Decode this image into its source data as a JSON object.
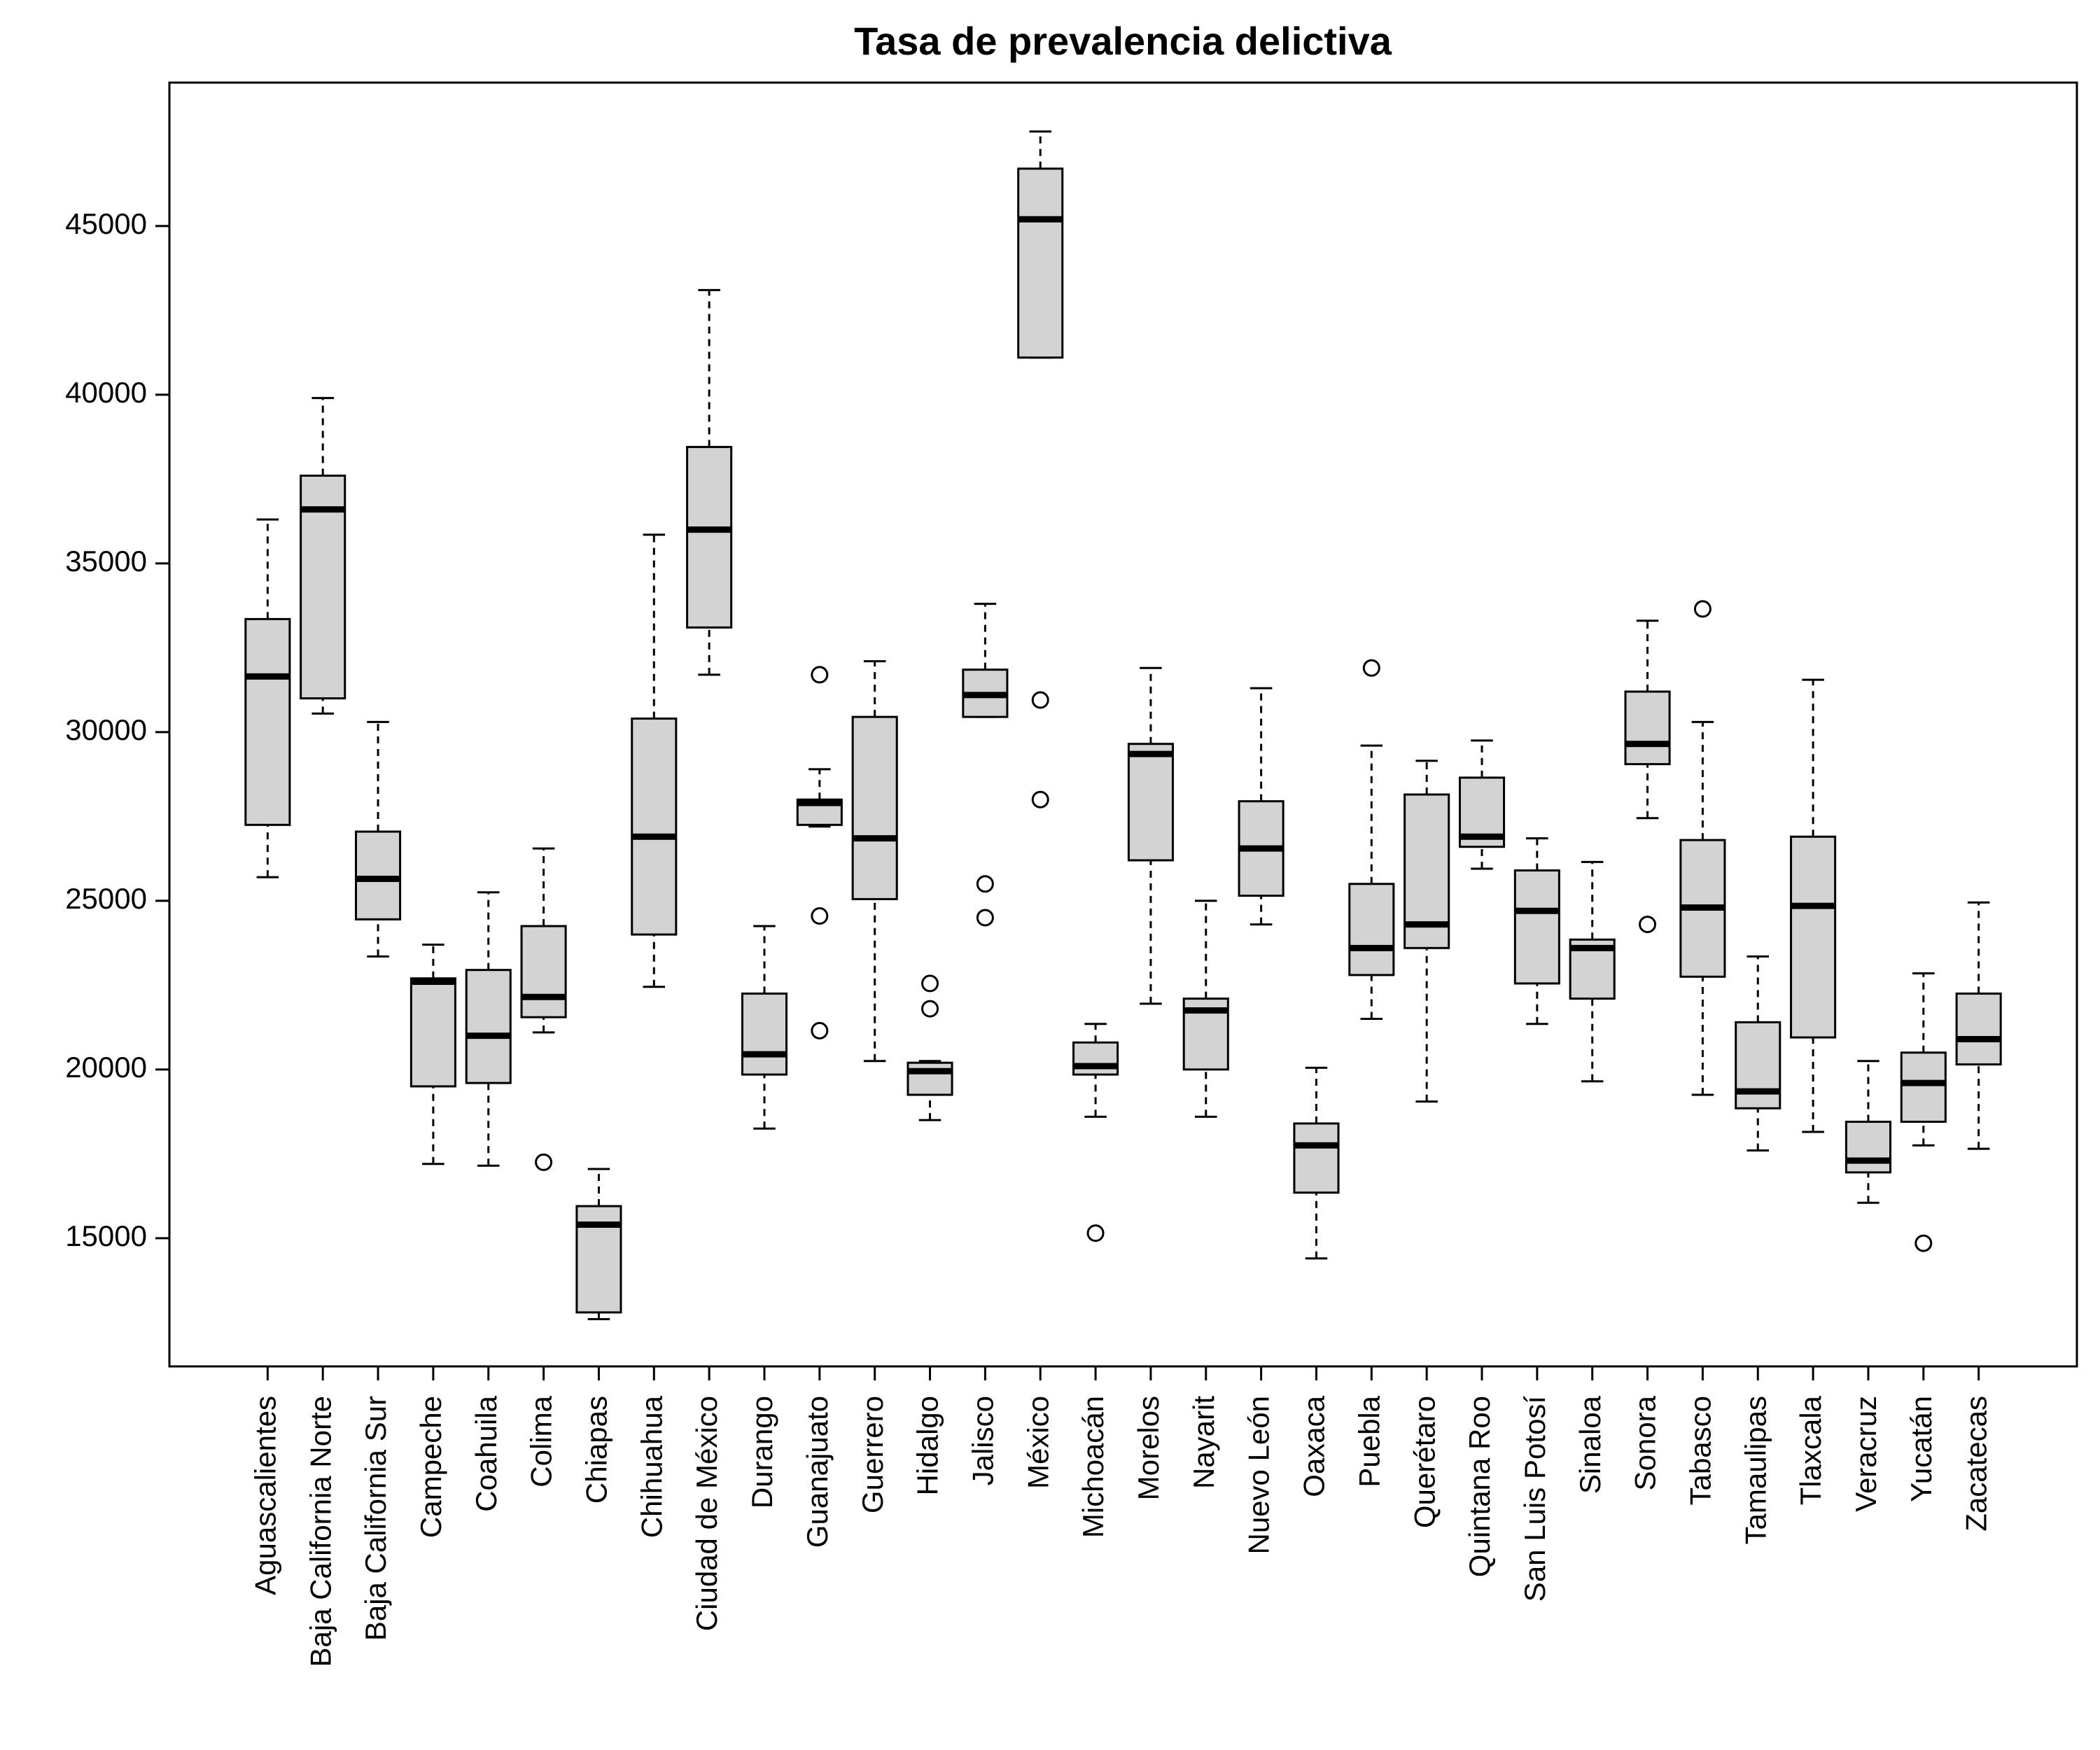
{
  "chart_data": {
    "type": "boxplot",
    "title": "Tasa de prevalencia delictiva",
    "categories": [
      "Aguascalientes",
      "Baja California Norte",
      "Baja California Sur",
      "Campeche",
      "Coahuila",
      "Colima",
      "Chiapas",
      "Chihuahua",
      "Ciudad de México",
      "Durango",
      "Guanajuato",
      "Guerrero",
      "Hidalgo",
      "Jalisco",
      "México",
      "Michoacán",
      "Morelos",
      "Nayarit",
      "Nuevo León",
      "Oaxaca",
      "Puebla",
      "Querétaro",
      "Quintana Roo",
      "San Luis Potosí",
      "Sinaloa",
      "Sonora",
      "Tabasco",
      "Tamaulipas",
      "Tlaxcala",
      "Veracruz",
      "Yucatán",
      "Zacatecas"
    ],
    "low": [
      25700,
      30550,
      23350,
      17200,
      17150,
      21100,
      12600,
      22450,
      31700,
      18250,
      27200,
      20250,
      18500,
      30450,
      41100,
      18600,
      21950,
      18600,
      24300,
      14400,
      21500,
      19050,
      25950,
      21350,
      19650,
      27450,
      19250,
      17600,
      18150,
      16050,
      17750,
      17650
    ],
    "q1": [
      27250,
      31000,
      24450,
      19500,
      19600,
      21550,
      12800,
      24000,
      33100,
      19850,
      27250,
      25050,
      19250,
      30450,
      41100,
      19850,
      26200,
      20000,
      25150,
      16350,
      22800,
      23600,
      26600,
      22550,
      22100,
      29050,
      22750,
      18850,
      20950,
      16950,
      18450,
      20150
    ],
    "median": [
      31650,
      36600,
      25650,
      22600,
      21000,
      22150,
      15400,
      26900,
      36000,
      20450,
      27900,
      26850,
      19950,
      31100,
      45200,
      20100,
      29350,
      21750,
      26550,
      17750,
      23600,
      24300,
      26900,
      24700,
      23600,
      29650,
      24800,
      19350,
      24850,
      17300,
      19600,
      20900
    ],
    "q3": [
      33350,
      37600,
      27050,
      22700,
      22950,
      24250,
      15950,
      30400,
      38450,
      22250,
      28000,
      30450,
      20200,
      31850,
      46700,
      20800,
      29650,
      22100,
      27950,
      18400,
      25500,
      28150,
      28650,
      25900,
      23850,
      31200,
      26800,
      21400,
      26900,
      18450,
      20500,
      22250
    ],
    "high": [
      36300,
      39900,
      30300,
      23700,
      25250,
      26550,
      17050,
      35850,
      43100,
      24250,
      28900,
      32100,
      20250,
      33800,
      47800,
      21350,
      31900,
      25000,
      31300,
      20050,
      29600,
      29150,
      29750,
      26850,
      26150,
      33300,
      30300,
      23350,
      31550,
      20250,
      22850,
      24950
    ],
    "outliers": [
      [],
      [],
      [],
      [],
      [],
      [
        17250
      ],
      [],
      [],
      [],
      [],
      [
        31700,
        24550,
        21150
      ],
      [],
      [
        22550,
        21800
      ],
      [
        25500,
        24500
      ],
      [
        30950,
        28000
      ],
      [
        15150
      ],
      [],
      [],
      [],
      [],
      [
        31900
      ],
      [],
      [],
      [],
      [],
      [
        24300
      ],
      [
        33650
      ],
      [],
      [],
      [],
      [
        14850
      ],
      []
    ],
    "color": "#d3d3d3",
    "ylim": [
      11200,
      49250
    ],
    "yticks": [
      15000,
      20000,
      25000,
      30000,
      35000,
      40000,
      45000
    ]
  }
}
